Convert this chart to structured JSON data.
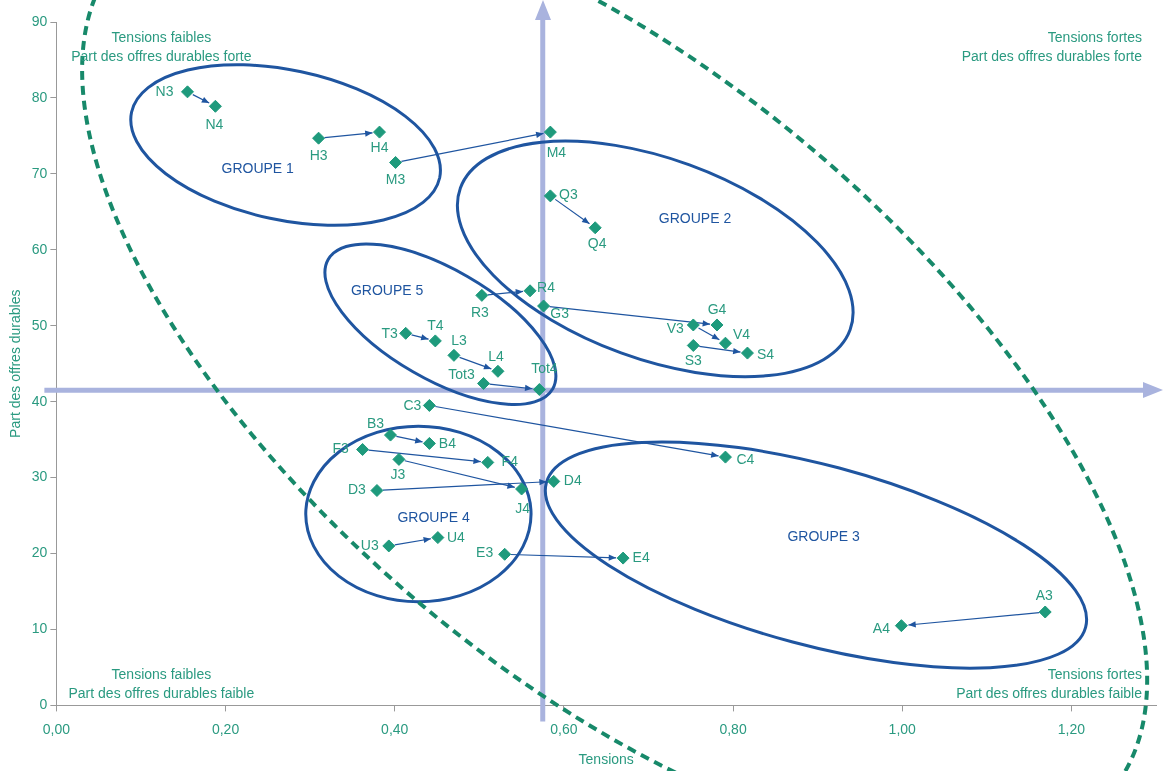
{
  "chart_data": {
    "type": "scatter",
    "xlabel": "Tensions",
    "ylabel": "Part des offres durables",
    "x": [
      0.155,
      0.188,
      0.31,
      0.382,
      0.401,
      0.584,
      0.584,
      0.637,
      0.503,
      0.56,
      0.576,
      0.781,
      0.753,
      0.791,
      0.753,
      0.817,
      0.413,
      0.448,
      0.47,
      0.522,
      0.505,
      0.571,
      0.441,
      0.791,
      0.395,
      0.441,
      0.362,
      0.51,
      0.405,
      0.55,
      0.379,
      0.588,
      0.393,
      0.451,
      0.53,
      0.67,
      1.169,
      0.999
    ],
    "values": [
      80.8,
      78.9,
      74.7,
      75.5,
      71.5,
      75.5,
      67.1,
      62.9,
      54.0,
      54.6,
      52.6,
      50.1,
      50.1,
      47.7,
      47.4,
      46.4,
      49.0,
      48.0,
      46.1,
      44.0,
      42.4,
      41.6,
      39.5,
      32.7,
      35.6,
      34.5,
      33.7,
      32.0,
      32.4,
      28.5,
      28.3,
      29.5,
      21.0,
      22.1,
      19.9,
      19.4,
      12.3,
      10.5
    ],
    "color": "#1e9a7c",
    "marker": "diamond",
    "legend": false,
    "grid": false,
    "xlim": [
      0,
      1.3
    ],
    "xticks": [
      {
        "value": 0,
        "label": "0,00"
      },
      {
        "value": 0.2,
        "label": "0,20"
      },
      {
        "value": 0.4,
        "label": "0,40"
      },
      {
        "value": 0.6,
        "label": "0,60"
      },
      {
        "value": 0.8,
        "label": "0,80"
      },
      {
        "value": 1.0,
        "label": "1,00"
      },
      {
        "value": 1.2,
        "label": "1,20"
      }
    ],
    "ylim": [
      0,
      90
    ],
    "yticks": [
      0,
      10,
      20,
      30,
      40,
      50,
      60,
      70,
      80,
      90
    ],
    "ref_lines": [
      {
        "axis": "x",
        "value": 0.575,
        "color": "#a9b3de"
      },
      {
        "axis": "y",
        "value": 41.5,
        "color": "#a9b3de"
      }
    ],
    "annotations": [
      "Tensions faibles\nPart des offres durables forte",
      "Tensions fortes\nPart des offres durables forte",
      "Tensions faibles\nPart des offres durables faible",
      "Tensions fortes\nPart des offres durables faible",
      "GROUPE 1",
      "GROUPE 2",
      "GROUPE 3",
      "GROUPE 4",
      "GROUPE 5",
      {
        "text": "N3",
        "x": 0.155,
        "y": 80.8
      },
      {
        "text": "N4",
        "x": 0.188,
        "y": 78.9
      },
      {
        "text": "H3",
        "x": 0.31,
        "y": 74.7
      },
      {
        "text": "H4",
        "x": 0.382,
        "y": 75.5
      },
      {
        "text": "M3",
        "x": 0.401,
        "y": 71.5
      },
      {
        "text": "M4",
        "x": 0.584,
        "y": 75.5
      },
      {
        "text": "Q3",
        "x": 0.584,
        "y": 67.1
      },
      {
        "text": "Q4",
        "x": 0.637,
        "y": 62.9
      },
      {
        "text": "R3",
        "x": 0.503,
        "y": 54.0
      },
      {
        "text": "R4",
        "x": 0.56,
        "y": 54.6
      },
      {
        "text": "G3",
        "x": 0.576,
        "y": 52.6
      },
      {
        "text": "G4",
        "x": 0.781,
        "y": 50.1
      },
      {
        "text": "V3",
        "x": 0.753,
        "y": 50.1
      },
      {
        "text": "V4",
        "x": 0.791,
        "y": 47.7
      },
      {
        "text": "S3",
        "x": 0.753,
        "y": 47.4
      },
      {
        "text": "S4",
        "x": 0.817,
        "y": 46.4
      },
      {
        "text": "T3",
        "x": 0.413,
        "y": 49.0
      },
      {
        "text": "T4",
        "x": 0.448,
        "y": 48.0
      },
      {
        "text": "L3",
        "x": 0.47,
        "y": 46.1
      },
      {
        "text": "L4",
        "x": 0.522,
        "y": 44.0
      },
      {
        "text": "Tot3",
        "x": 0.505,
        "y": 42.4
      },
      {
        "text": "Tot4",
        "x": 0.571,
        "y": 41.6
      },
      {
        "text": "C3",
        "x": 0.441,
        "y": 39.5
      },
      {
        "text": "C4",
        "x": 0.791,
        "y": 32.7
      },
      {
        "text": "B3",
        "x": 0.395,
        "y": 35.6
      },
      {
        "text": "B4",
        "x": 0.441,
        "y": 34.5
      },
      {
        "text": "F3",
        "x": 0.362,
        "y": 33.7
      },
      {
        "text": "F4",
        "x": 0.51,
        "y": 32.0
      },
      {
        "text": "J3",
        "x": 0.405,
        "y": 32.4
      },
      {
        "text": "J4",
        "x": 0.55,
        "y": 28.5
      },
      {
        "text": "D3",
        "x": 0.379,
        "y": 28.3
      },
      {
        "text": "D4",
        "x": 0.588,
        "y": 29.5
      },
      {
        "text": "U3",
        "x": 0.393,
        "y": 21.0
      },
      {
        "text": "U4",
        "x": 0.451,
        "y": 22.1
      },
      {
        "text": "E3",
        "x": 0.53,
        "y": 19.9
      },
      {
        "text": "E4",
        "x": 0.67,
        "y": 19.4
      },
      {
        "text": "A3",
        "x": 1.169,
        "y": 12.3
      },
      {
        "text": "A4",
        "x": 0.999,
        "y": 10.5
      }
    ]
  }
}
